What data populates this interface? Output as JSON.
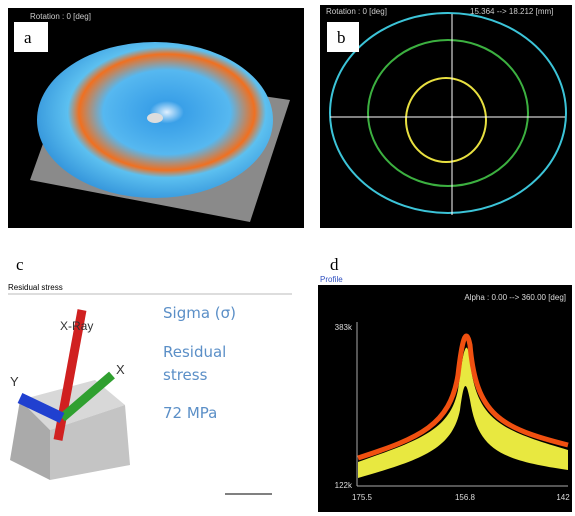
{
  "panels": [
    {
      "label": "a",
      "overlay": "Rotation : 0 [deg]"
    },
    {
      "label": "b",
      "overlay": "Rotation : 0 [deg]",
      "range": "15.364 --> 18.212 [mm]"
    },
    {
      "label": "c",
      "header": "Residual stress",
      "beam": "X-Ray",
      "axis_y": "Y",
      "axis_x": "X",
      "lines": [
        "Sigma (σ)",
        "Residual",
        "stress",
        "72 MPa"
      ]
    },
    {
      "label": "d",
      "header": "Profile",
      "range": "Alpha : 0.00 --> 360.00 [deg]",
      "y_labels": [
        "383k",
        "122k"
      ],
      "x_labels": [
        "175.5",
        "156.8",
        "142"
      ]
    }
  ]
}
